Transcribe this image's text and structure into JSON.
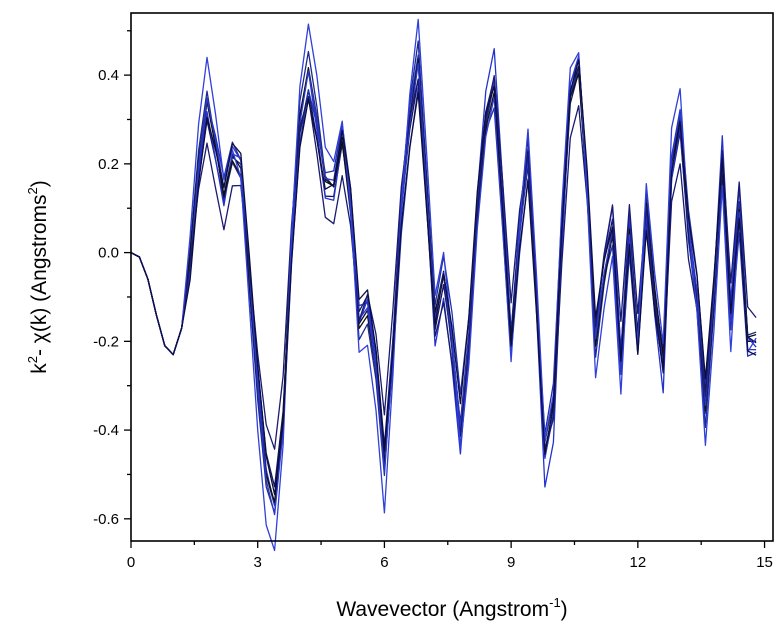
{
  "chart_data": {
    "type": "line",
    "title": "",
    "xlabel": {
      "main": "Wavevector (Angstrom",
      "sup": "-1",
      "tail": ")"
    },
    "ylabel": {
      "k": "k",
      "sup1": "2",
      "mid": "- χ(k) (Angstroms",
      "sup2": "2",
      "tail": ")"
    },
    "xlim": [
      0,
      15.2
    ],
    "ylim": [
      -0.65,
      0.54
    ],
    "xticks": [
      0,
      3,
      6,
      9,
      12,
      15
    ],
    "xtick_labels": [
      "0",
      "3",
      "6",
      "9",
      "12",
      "15"
    ],
    "yticks": [
      -0.6,
      -0.4,
      -0.2,
      0.0,
      0.2,
      0.4
    ],
    "ytick_labels": [
      "-0.6",
      "-0.4",
      "-0.2",
      "0.0",
      "0.2",
      "0.4"
    ],
    "grid": false,
    "legend": "none",
    "series_colors": [
      "#0a0a2a",
      "#141460",
      "#1e2a8a",
      "#1f2fb0",
      "#2233cc",
      "#111111",
      "#2a38c8",
      "#1a1a70",
      "#3040d8",
      "#0d0d40"
    ],
    "series_base": {
      "x": [
        0.0,
        0.2,
        0.4,
        0.6,
        0.8,
        1.0,
        1.2,
        1.4,
        1.6,
        1.8,
        2.0,
        2.2,
        2.4,
        2.6,
        2.8,
        3.0,
        3.2,
        3.4,
        3.6,
        3.8,
        4.0,
        4.2,
        4.4,
        4.6,
        4.8,
        5.0,
        5.2,
        5.4,
        5.6,
        5.8,
        6.0,
        6.2,
        6.4,
        6.6,
        6.8,
        7.0,
        7.2,
        7.4,
        7.6,
        7.8,
        8.0,
        8.2,
        8.4,
        8.6,
        8.8,
        9.0,
        9.2,
        9.4,
        9.6,
        9.8,
        10.0,
        10.2,
        10.4,
        10.6,
        10.8,
        11.0,
        11.2,
        11.4,
        11.6,
        11.8,
        12.0,
        12.2,
        12.4,
        12.6,
        12.8,
        13.0,
        13.2,
        13.4,
        13.6,
        13.8,
        14.0,
        14.2,
        14.4,
        14.6,
        14.8
      ],
      "y": [
        0.0,
        -0.01,
        -0.06,
        -0.14,
        -0.21,
        -0.23,
        -0.17,
        -0.02,
        0.2,
        0.34,
        0.24,
        0.13,
        0.22,
        0.19,
        -0.05,
        -0.3,
        -0.5,
        -0.57,
        -0.38,
        0.02,
        0.3,
        0.41,
        0.3,
        0.16,
        0.15,
        0.26,
        0.11,
        -0.16,
        -0.13,
        -0.26,
        -0.48,
        -0.22,
        0.1,
        0.3,
        0.43,
        0.14,
        -0.15,
        -0.05,
        -0.2,
        -0.4,
        -0.2,
        0.1,
        0.3,
        0.38,
        0.1,
        -0.2,
        0.05,
        0.22,
        -0.1,
        -0.45,
        -0.35,
        0.05,
        0.36,
        0.42,
        0.15,
        -0.2,
        -0.05,
        0.05,
        -0.25,
        0.05,
        -0.2,
        0.1,
        -0.1,
        -0.25,
        0.2,
        0.3,
        0.05,
        -0.1,
        -0.35,
        -0.1,
        0.2,
        -0.15,
        0.1,
        -0.2,
        -0.2
      ]
    },
    "series_scales": [
      1.0,
      0.96,
      1.04,
      0.92,
      1.08,
      0.98,
      1.02,
      0.9,
      1.1,
      0.94
    ],
    "series_shifts": [
      0.0,
      0.03,
      -0.03,
      0.05,
      -0.05,
      0.015,
      -0.015,
      0.07,
      -0.07,
      0.045
    ]
  }
}
